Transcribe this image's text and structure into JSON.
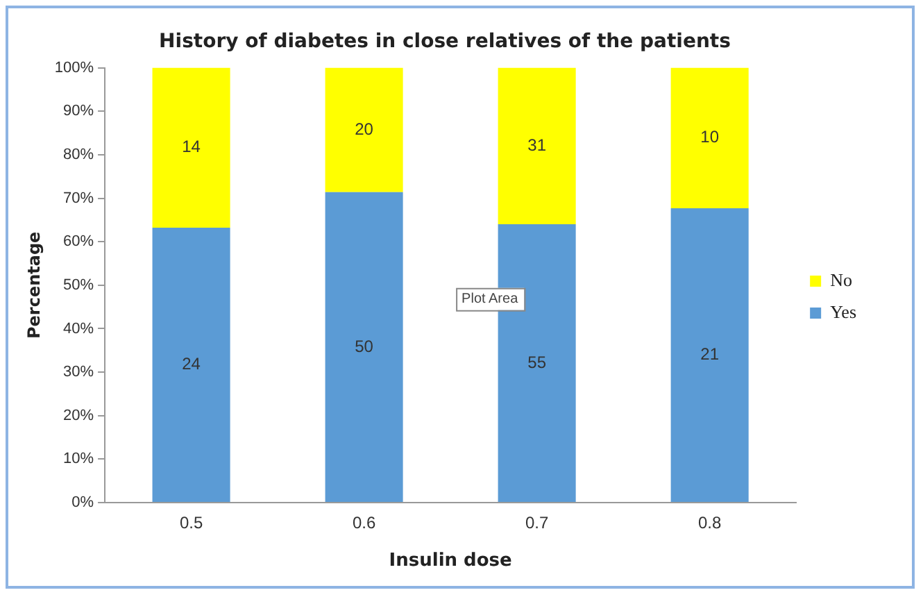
{
  "chart_data": {
    "type": "bar",
    "stacked": true,
    "title": "History of diabetes in close relatives of the patients",
    "xlabel": "Insulin dose",
    "ylabel": "Percentage",
    "categories": [
      "0.5",
      "0.6",
      "0.7",
      "0.8"
    ],
    "series": [
      {
        "name": "Yes",
        "color": "#5b9bd5",
        "values": [
          63.2,
          71.4,
          64.0,
          67.7
        ]
      },
      {
        "name": "No",
        "color": "#ffff00",
        "values": [
          36.8,
          28.6,
          36.0,
          32.3
        ]
      }
    ],
    "ylim": [
      0,
      100
    ],
    "yticks": [
      {
        "value": 0,
        "label": "0%"
      },
      {
        "value": 10,
        "label": "10%"
      },
      {
        "value": 20,
        "label": "20%"
      },
      {
        "value": 30,
        "label": "30%"
      },
      {
        "value": 40,
        "label": "40%"
      },
      {
        "value": 50,
        "label": "50%"
      },
      {
        "value": 60,
        "label": "60%"
      },
      {
        "value": 70,
        "label": "70%"
      },
      {
        "value": 80,
        "label": "80%"
      },
      {
        "value": 90,
        "label": "90%"
      },
      {
        "value": 100,
        "label": "100%"
      }
    ],
    "grid": false,
    "legend": "right",
    "annotations": [
      "Plot Area",
      "24",
      "50",
      "55",
      "21",
      "14",
      "20",
      "31",
      "10"
    ]
  }
}
